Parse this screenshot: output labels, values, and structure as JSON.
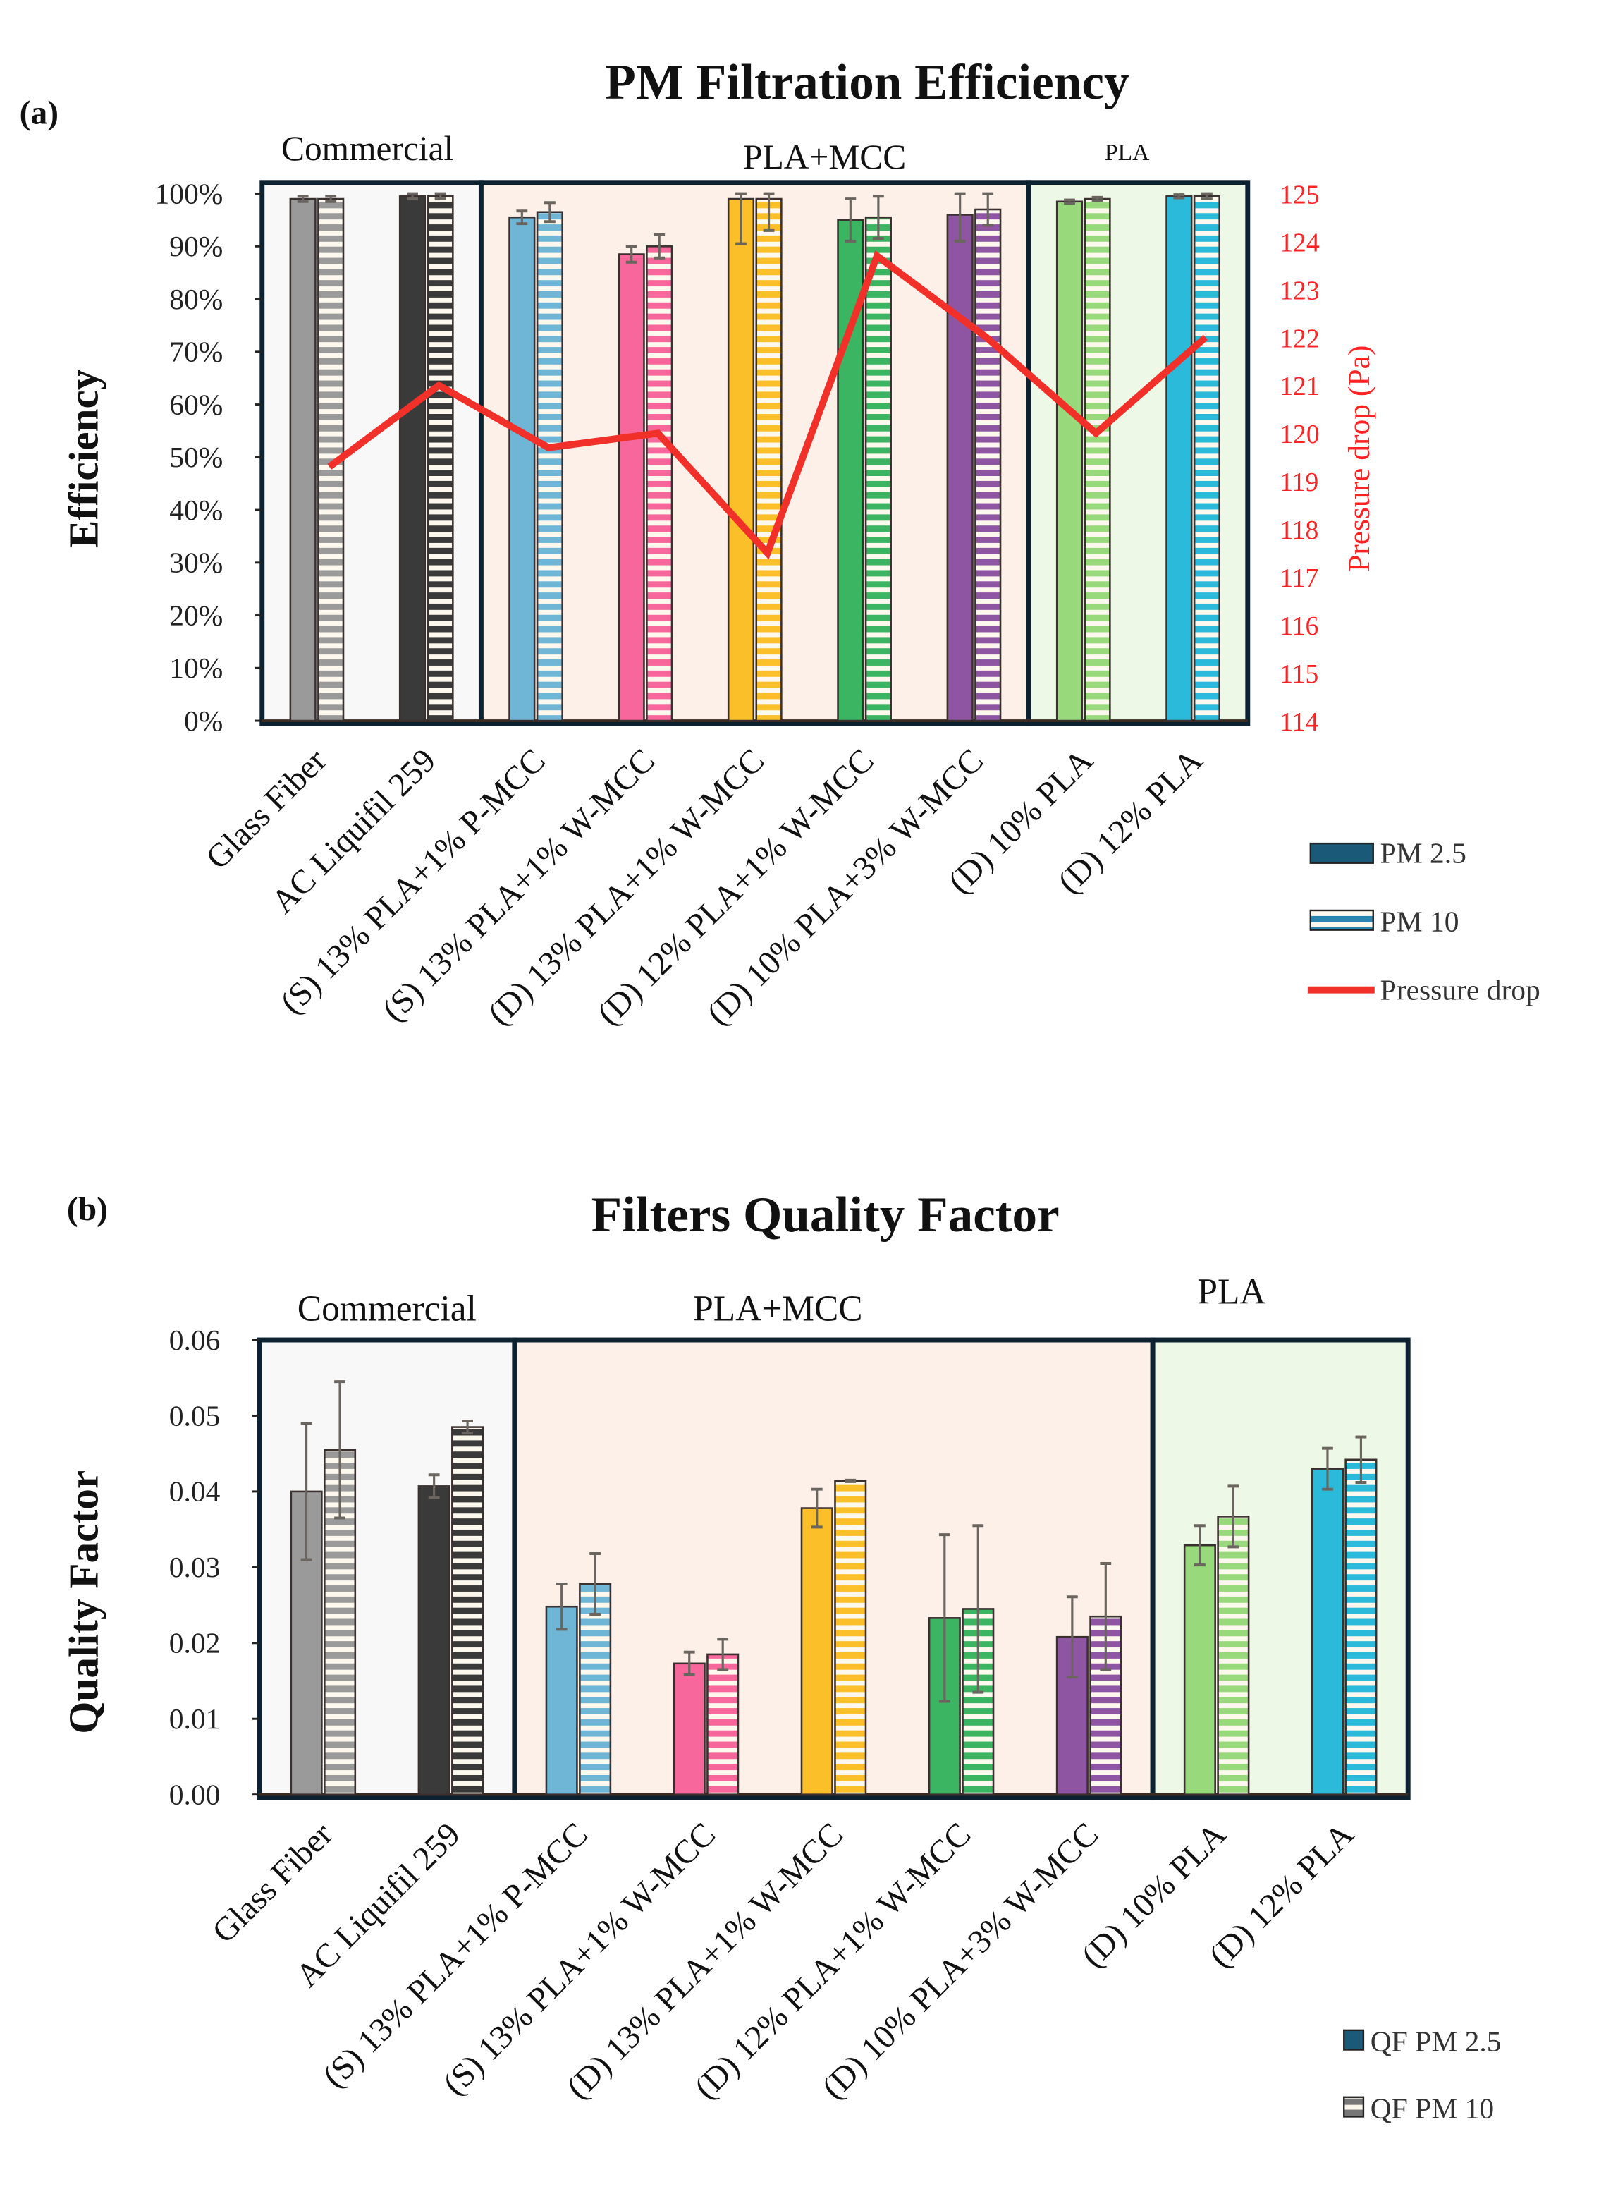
{
  "chart_data": [
    {
      "type": "bar",
      "panel_label": "(a)",
      "title": "PM Filtration Efficiency",
      "xlabel": "",
      "ylabel": "Efficiency",
      "y2label": "Pressure drop (Pa)",
      "ylim": [
        0,
        100
      ],
      "y2lim": [
        114,
        125
      ],
      "yticks": [
        "0%",
        "10%",
        "20%",
        "30%",
        "40%",
        "50%",
        "60%",
        "70%",
        "80%",
        "90%",
        "100%"
      ],
      "y2ticks": [
        "114",
        "115",
        "116",
        "117",
        "118",
        "119",
        "120",
        "121",
        "122",
        "123",
        "124",
        "125"
      ],
      "categories": [
        "Glass Fiber",
        "AC Liquifil 259",
        "(S) 13% PLA+1% P-MCC",
        "(S) 13% PLA+1% W-MCC",
        "(D) 13% PLA+1% W-MCC",
        "(D) 12% PLA+1% W-MCC",
        "(D) 10% PLA+3% W-MCC",
        "(D) 10% PLA",
        "(D) 12% PLA"
      ],
      "groups": [
        {
          "label": "Commercial",
          "from": 0,
          "to": 1,
          "color": "#f8f8f8"
        },
        {
          "label": "PLA+MCC",
          "from": 2,
          "to": 6,
          "color": "#fdf0e8"
        },
        {
          "label": "PLA",
          "from": 7,
          "to": 8,
          "color": "#eef8e6"
        }
      ],
      "bar_colors": [
        "#9a9a9a",
        "#3a3a3a",
        "#6fb6d6",
        "#f7679b",
        "#fbbf2a",
        "#3cb563",
        "#8e55a3",
        "#98d97b",
        "#2bbad9"
      ],
      "series": [
        {
          "name": "PM 2.5",
          "style": "solid",
          "values": [
            99,
            99.5,
            95.5,
            88.5,
            99,
            95,
            96,
            98.5,
            99.5
          ],
          "err": [
            0.5,
            0.5,
            1.2,
            1.5,
            8.5,
            4,
            5,
            0.3,
            0.3
          ]
        },
        {
          "name": "PM 10",
          "style": "striped",
          "values": [
            99,
            99.5,
            96.5,
            90,
            99,
            95.5,
            97,
            99,
            99.5
          ],
          "err": [
            0.5,
            0.5,
            1.8,
            2.2,
            6,
            4,
            3,
            0.3,
            0.5
          ]
        },
        {
          "name": "Pressure drop",
          "style": "line",
          "axis": "right",
          "color": "#f2302a",
          "values": [
            119.3,
            121,
            119.7,
            120,
            117.5,
            123.7,
            122,
            120,
            122
          ]
        }
      ],
      "legend": "right"
    },
    {
      "type": "bar",
      "panel_label": "(b)",
      "title": "Filters Quality Factor",
      "xlabel": "",
      "ylabel": "Quality Factor",
      "ylim": [
        0,
        0.06
      ],
      "yticks": [
        "0.00",
        "0.01",
        "0.02",
        "0.03",
        "0.04",
        "0.05",
        "0.06"
      ],
      "categories": [
        "Glass Fiber",
        "AC Liquifil 259",
        "(S) 13% PLA+1% P-MCC",
        "(S) 13% PLA+1% W-MCC",
        "(D) 13% PLA+1% W-MCC",
        "(D) 12% PLA+1% W-MCC",
        "(D) 10% PLA+3% W-MCC",
        "(D) 10% PLA",
        "(D) 12% PLA"
      ],
      "groups": [
        {
          "label": "Commercial",
          "from": 0,
          "to": 1,
          "color": "#f8f8f8"
        },
        {
          "label": "PLA+MCC",
          "from": 2,
          "to": 6,
          "color": "#fdf0e8"
        },
        {
          "label": "PLA",
          "from": 7,
          "to": 8,
          "color": "#eef8e6"
        }
      ],
      "bar_colors": [
        "#9a9a9a",
        "#3a3a3a",
        "#6fb6d6",
        "#f7679b",
        "#fbbf2a",
        "#3cb563",
        "#8e55a3",
        "#98d97b",
        "#2bbad9"
      ],
      "series": [
        {
          "name": "QF PM 2.5",
          "style": "solid",
          "values": [
            0.04,
            0.0407,
            0.0248,
            0.0173,
            0.0378,
            0.0233,
            0.0208,
            0.0329,
            0.043
          ],
          "err": [
            0.009,
            0.0015,
            0.003,
            0.0015,
            0.0025,
            0.011,
            0.0053,
            0.0026,
            0.0027
          ]
        },
        {
          "name": "QF PM 10",
          "style": "striped",
          "values": [
            0.0455,
            0.0485,
            0.0278,
            0.0185,
            0.0414,
            0.0245,
            0.0235,
            0.0367,
            0.0442
          ],
          "err": [
            0.009,
            0.0008,
            0.004,
            0.002,
            0.0001,
            0.011,
            0.007,
            0.004,
            0.003
          ]
        }
      ],
      "legend": "bottom-right"
    }
  ]
}
